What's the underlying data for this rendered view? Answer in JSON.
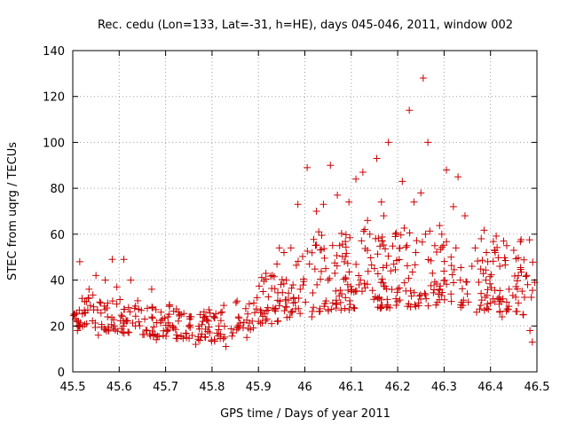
{
  "chart_data": {
    "type": "scatter",
    "title": "Rec. cedu (Lon=133, Lat=-31, h=HE), days 045-046, 2011, window 002",
    "xlabel": "GPS time / Days of year 2011",
    "ylabel": "STEC from uqrg / TECUs",
    "xlim": [
      45.5,
      46.5
    ],
    "ylim": [
      0,
      140
    ],
    "xticks": [
      "45.5",
      "45.6",
      "45.7",
      "45.8",
      "45.9",
      "46",
      "46.1",
      "46.2",
      "46.3",
      "46.4",
      "46.5"
    ],
    "yticks": [
      "0",
      "20",
      "40",
      "60",
      "80",
      "100",
      "120",
      "140"
    ],
    "grid": true,
    "marker": "+",
    "color": "#cc0000",
    "series": [
      {
        "name": "STEC",
        "points": [
          [
            45.505,
            25
          ],
          [
            45.51,
            18
          ],
          [
            45.515,
            48
          ],
          [
            45.52,
            32
          ],
          [
            45.53,
            21
          ],
          [
            45.535,
            36
          ],
          [
            45.545,
            27
          ],
          [
            45.55,
            42
          ],
          [
            45.555,
            16
          ],
          [
            45.56,
            30
          ],
          [
            45.57,
            40
          ],
          [
            45.575,
            24
          ],
          [
            45.585,
            49
          ],
          [
            45.59,
            20
          ],
          [
            45.595,
            37
          ],
          [
            45.61,
            49
          ],
          [
            45.62,
            28
          ],
          [
            45.625,
            40
          ],
          [
            45.635,
            20
          ],
          [
            45.64,
            31
          ],
          [
            45.655,
            23
          ],
          [
            45.66,
            18
          ],
          [
            45.67,
            36
          ],
          [
            45.68,
            14
          ],
          [
            45.69,
            26
          ],
          [
            45.705,
            24
          ],
          [
            45.715,
            20
          ],
          [
            45.73,
            25
          ],
          [
            45.745,
            15
          ],
          [
            45.755,
            24
          ],
          [
            45.765,
            12
          ],
          [
            45.78,
            22
          ],
          [
            45.795,
            17
          ],
          [
            45.805,
            14
          ],
          [
            45.815,
            20
          ],
          [
            45.83,
            11
          ],
          [
            45.845,
            17
          ],
          [
            45.86,
            20
          ],
          [
            45.875,
            15
          ],
          [
            45.89,
            30
          ],
          [
            45.9,
            22
          ],
          [
            45.91,
            35
          ],
          [
            45.92,
            28
          ],
          [
            45.93,
            42
          ],
          [
            45.94,
            47
          ],
          [
            45.945,
            54
          ],
          [
            45.955,
            52
          ],
          [
            45.96,
            40
          ],
          [
            45.97,
            54
          ],
          [
            45.975,
            30
          ],
          [
            45.985,
            73
          ],
          [
            45.99,
            36
          ],
          [
            46.005,
            89
          ],
          [
            46.01,
            47
          ],
          [
            46.015,
            24
          ],
          [
            46.025,
            70
          ],
          [
            46.03,
            61
          ],
          [
            46.04,
            73
          ],
          [
            46.045,
            45
          ],
          [
            46.05,
            40
          ],
          [
            46.055,
            90
          ],
          [
            46.06,
            30
          ],
          [
            46.07,
            77
          ],
          [
            46.075,
            55
          ],
          [
            46.085,
            48
          ],
          [
            46.095,
            74
          ],
          [
            46.1,
            35
          ],
          [
            46.105,
            28
          ],
          [
            46.11,
            84
          ],
          [
            46.12,
            40
          ],
          [
            46.125,
            87
          ],
          [
            46.135,
            66
          ],
          [
            46.14,
            60
          ],
          [
            46.15,
            45
          ],
          [
            46.155,
            93
          ],
          [
            46.16,
            32
          ],
          [
            46.165,
            74
          ],
          [
            46.17,
            68
          ],
          [
            46.18,
            100
          ],
          [
            46.185,
            44
          ],
          [
            46.195,
            60
          ],
          [
            46.2,
            36
          ],
          [
            46.21,
            83
          ],
          [
            46.22,
            55
          ],
          [
            46.225,
            114
          ],
          [
            46.235,
            74
          ],
          [
            46.245,
            30
          ],
          [
            46.25,
            78
          ],
          [
            46.255,
            128
          ],
          [
            46.26,
            60
          ],
          [
            46.265,
            100
          ],
          [
            46.275,
            43
          ],
          [
            46.28,
            55
          ],
          [
            46.29,
            36
          ],
          [
            46.295,
            60
          ],
          [
            46.305,
            88
          ],
          [
            46.315,
            50
          ],
          [
            46.32,
            72
          ],
          [
            46.33,
            85
          ],
          [
            46.335,
            40
          ],
          [
            46.345,
            68
          ],
          [
            46.35,
            34
          ],
          [
            46.36,
            46
          ],
          [
            46.37,
            26
          ],
          [
            46.38,
            58
          ],
          [
            46.39,
            40
          ],
          [
            46.4,
            30
          ],
          [
            46.41,
            52
          ],
          [
            46.42,
            46
          ],
          [
            46.425,
            24
          ],
          [
            46.435,
            55
          ],
          [
            46.44,
            36
          ],
          [
            46.45,
            53
          ],
          [
            46.46,
            30
          ],
          [
            46.47,
            25
          ],
          [
            46.48,
            38
          ],
          [
            46.485,
            18
          ],
          [
            46.49,
            13
          ],
          [
            46.495,
            39
          ]
        ]
      }
    ]
  }
}
